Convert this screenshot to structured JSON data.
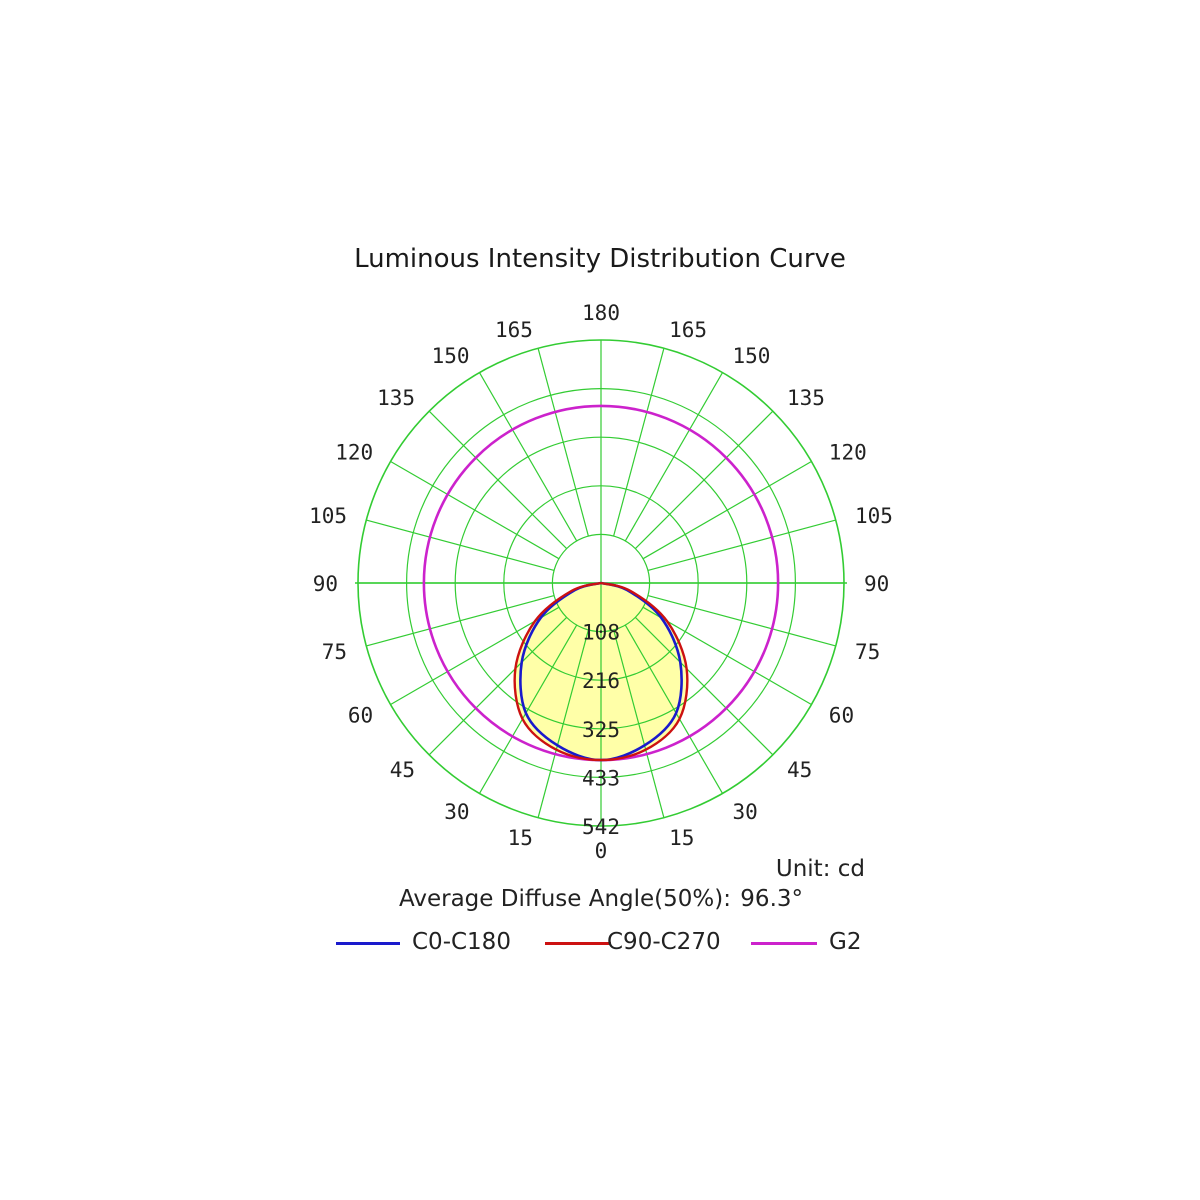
{
  "chart_data": {
    "type": "polar",
    "title": "Luminous Intensity Distribution Curve",
    "unit_text": "Unit: cd",
    "average_angle_label": "Average Diffuse Angle(50%):",
    "average_angle_value": "96.3°",
    "radial_ticks": [
      "108",
      "216",
      "325",
      "433",
      "542"
    ],
    "radial_max": 542,
    "angle_labels_left": [
      "0",
      "15",
      "30",
      "45",
      "60",
      "75",
      "90",
      "105",
      "120",
      "135",
      "150",
      "165",
      "180"
    ],
    "angle_labels_right": [
      "15",
      "30",
      "45",
      "60",
      "75",
      "90",
      "105",
      "120",
      "135",
      "150",
      "165"
    ],
    "angles_deg": [
      0,
      15,
      30,
      45,
      60,
      75,
      90,
      105,
      120,
      135,
      150,
      165,
      180
    ],
    "grid": true,
    "legend_position": "bottom",
    "series": [
      {
        "name": "C0-C180",
        "color": "#1a1acc",
        "angles": [
          0,
          15,
          30,
          45,
          60,
          75,
          90
        ],
        "values": [
          395,
          375,
          335,
          250,
          155,
          60,
          0
        ]
      },
      {
        "name": "C90-C270",
        "color": "#cc1111",
        "angles": [
          0,
          15,
          30,
          45,
          60,
          75,
          90
        ],
        "values": [
          395,
          385,
          350,
          270,
          170,
          68,
          0
        ]
      },
      {
        "name": "G2",
        "color": "#cc22cc",
        "angles": [
          0,
          90,
          180
        ],
        "values": [
          395,
          395,
          395
        ]
      }
    ],
    "fill_color": "#ffff99",
    "grid_color": "#33cc33"
  }
}
